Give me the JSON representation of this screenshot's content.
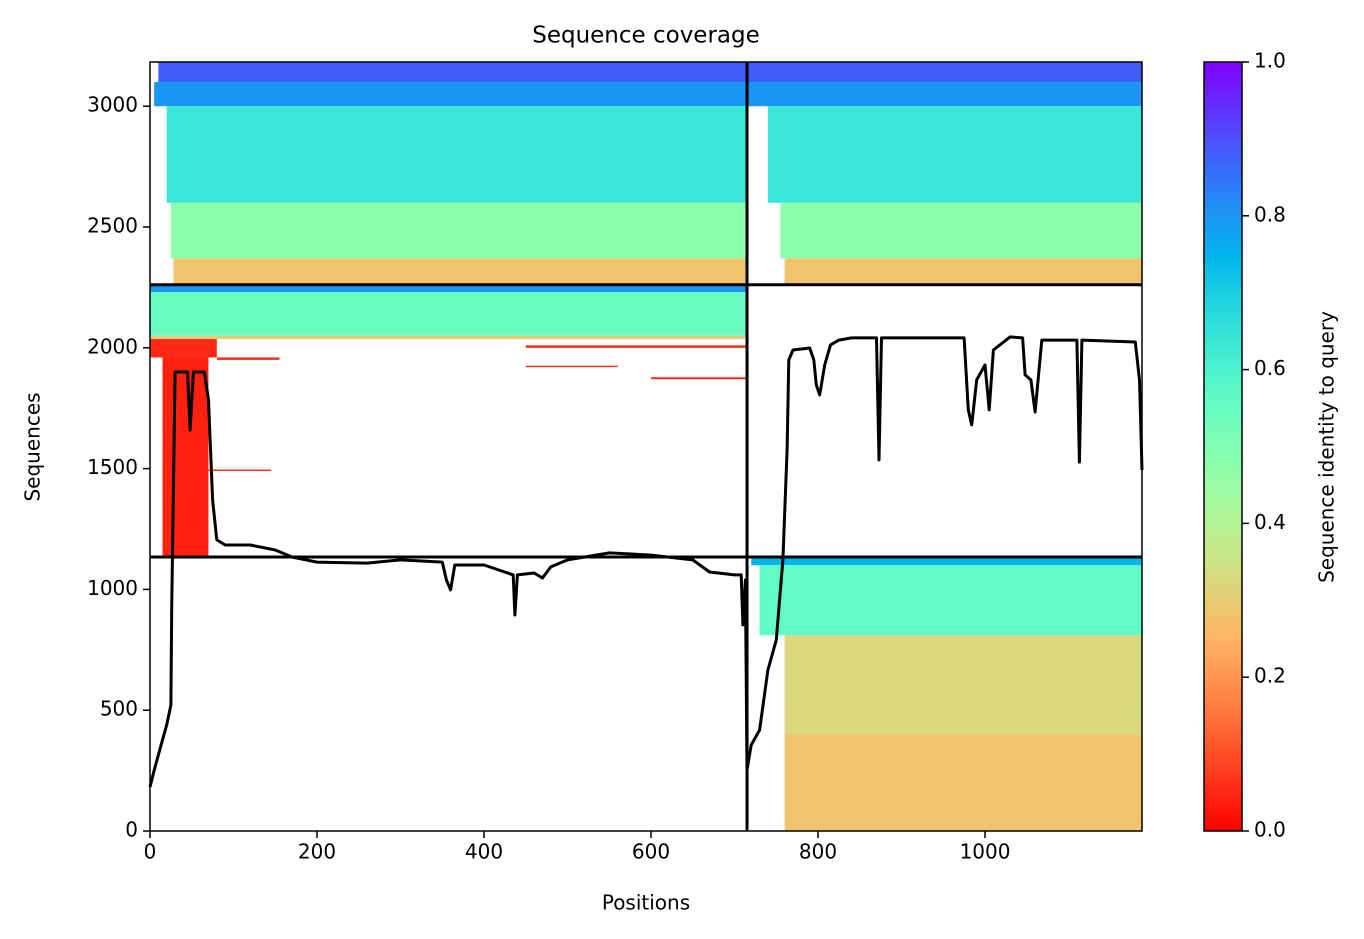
{
  "chart_data": {
    "type": "heatmap",
    "title": "Sequence coverage",
    "xlabel": "Positions",
    "ylabel": "Sequences",
    "colorbar_label": "Sequence identity to query",
    "colormap": "rainbow_r",
    "xlim": [
      0,
      1188
    ],
    "ylim": [
      0,
      3183
    ],
    "xticks": [
      0,
      200,
      400,
      600,
      800,
      1000
    ],
    "yticks": [
      0,
      500,
      1000,
      1500,
      2000,
      2500,
      3000
    ],
    "clim": [
      0,
      1
    ],
    "cticks": [
      {
        "value": 0,
        "label": "0.0"
      },
      {
        "value": 0.2,
        "label": "0.2"
      },
      {
        "value": 0.4,
        "label": "0.4"
      },
      {
        "value": 0.6,
        "label": "0.6"
      },
      {
        "value": 0.8,
        "label": "0.8"
      },
      {
        "value": 1,
        "label": "1.0"
      }
    ],
    "bands": [
      {
        "positions": [
          10,
          715
        ],
        "sequences": [
          3100,
          3183
        ],
        "identity": 0.88
      },
      {
        "positions": [
          5,
          715
        ],
        "sequences": [
          3000,
          3100
        ],
        "identity": 0.8
      },
      {
        "positions": [
          20,
          715
        ],
        "sequences": [
          2600,
          3000
        ],
        "identity": 0.64
      },
      {
        "positions": [
          25,
          715
        ],
        "sequences": [
          2370,
          2600
        ],
        "identity": 0.47
      },
      {
        "positions": [
          28,
          715
        ],
        "sequences": [
          2261,
          2370
        ],
        "identity": 0.28
      },
      {
        "positions": [
          715,
          1188
        ],
        "sequences": [
          3100,
          3183
        ],
        "identity": 0.88
      },
      {
        "positions": [
          715,
          1188
        ],
        "sequences": [
          3000,
          3100
        ],
        "identity": 0.8
      },
      {
        "positions": [
          740,
          1188
        ],
        "sequences": [
          2600,
          3000
        ],
        "identity": 0.64
      },
      {
        "positions": [
          755,
          1188
        ],
        "sequences": [
          2370,
          2600
        ],
        "identity": 0.47
      },
      {
        "positions": [
          760,
          1188
        ],
        "sequences": [
          2261,
          2370
        ],
        "identity": 0.28
      },
      {
        "positions": [
          0,
          715
        ],
        "sequences": [
          2230,
          2261
        ],
        "identity": 0.8
      },
      {
        "positions": [
          0,
          715
        ],
        "sequences": [
          2050,
          2230
        ],
        "identity": 0.55
      },
      {
        "positions": [
          0,
          715
        ],
        "sequences": [
          2036,
          2050
        ],
        "identity": 0.3
      },
      {
        "positions": [
          0,
          80
        ],
        "sequences": [
          1960,
          2036
        ],
        "identity": 0.05
      },
      {
        "positions": [
          15,
          70
        ],
        "sequences": [
          1134,
          1960
        ],
        "identity": 0.04
      },
      {
        "positions": [
          450,
          715
        ],
        "sequences": [
          2000,
          2010
        ],
        "identity": 0.05
      },
      {
        "positions": [
          80,
          155
        ],
        "sequences": [
          1950,
          1960
        ],
        "identity": 0.05
      },
      {
        "positions": [
          600,
          715
        ],
        "sequences": [
          1870,
          1878
        ],
        "identity": 0.05
      },
      {
        "positions": [
          450,
          560
        ],
        "sequences": [
          1920,
          1926
        ],
        "identity": 0.05
      },
      {
        "positions": [
          70,
          145
        ],
        "sequences": [
          1490,
          1496
        ],
        "identity": 0.05
      },
      {
        "positions": [
          720,
          1188
        ],
        "sequences": [
          1100,
          1134
        ],
        "identity": 0.75
      },
      {
        "positions": [
          730,
          1188
        ],
        "sequences": [
          810,
          1100
        ],
        "identity": 0.56
      },
      {
        "positions": [
          760,
          1188
        ],
        "sequences": [
          400,
          810
        ],
        "identity": 0.32
      },
      {
        "positions": [
          760,
          1188
        ],
        "sequences": [
          0,
          400
        ],
        "identity": 0.28
      }
    ],
    "boundaries": {
      "positions": [
        715
      ],
      "sequences": [
        1134,
        2261
      ]
    },
    "coverage": {
      "color": "#000000",
      "x": [
        0,
        5,
        15,
        20,
        25,
        26,
        30,
        45,
        48,
        52,
        65,
        70,
        75,
        80,
        90,
        120,
        150,
        170,
        200,
        260,
        300,
        350,
        355,
        360,
        365,
        400,
        435,
        437,
        440,
        460,
        470,
        480,
        500,
        550,
        600,
        650,
        670,
        700,
        708,
        710,
        713,
        715,
        720,
        730,
        740,
        750,
        755,
        758,
        763,
        765,
        770,
        790,
        795,
        798,
        802,
        808,
        815,
        825,
        840,
        870,
        873,
        876,
        900,
        975,
        980,
        984,
        990,
        1000,
        1005,
        1010,
        1030,
        1045,
        1048,
        1055,
        1060,
        1068,
        1110,
        1113,
        1116,
        1180,
        1185,
        1188
      ],
      "y": [
        182,
        252,
        377,
        439,
        521,
        923,
        1900,
        1900,
        1660,
        1900,
        1900,
        1784,
        1370,
        1205,
        1184,
        1184,
        1163,
        1134,
        1113,
        1109,
        1122,
        1113,
        1039,
        998,
        1101,
        1101,
        1060,
        894,
        1060,
        1068,
        1047,
        1093,
        1122,
        1151,
        1142,
        1122,
        1072,
        1060,
        1060,
        853,
        1039,
        252,
        356,
        418,
        666,
        791,
        998,
        1122,
        1577,
        1950,
        1991,
        1999,
        1950,
        1846,
        1805,
        1929,
        2012,
        2032,
        2041,
        2041,
        1536,
        2041,
        2041,
        2041,
        1743,
        1681,
        1867,
        1929,
        1743,
        1991,
        2045,
        2041,
        1888,
        1867,
        1734,
        2032,
        2032,
        1527,
        2032,
        2024,
        1867,
        1494
      ]
    }
  }
}
